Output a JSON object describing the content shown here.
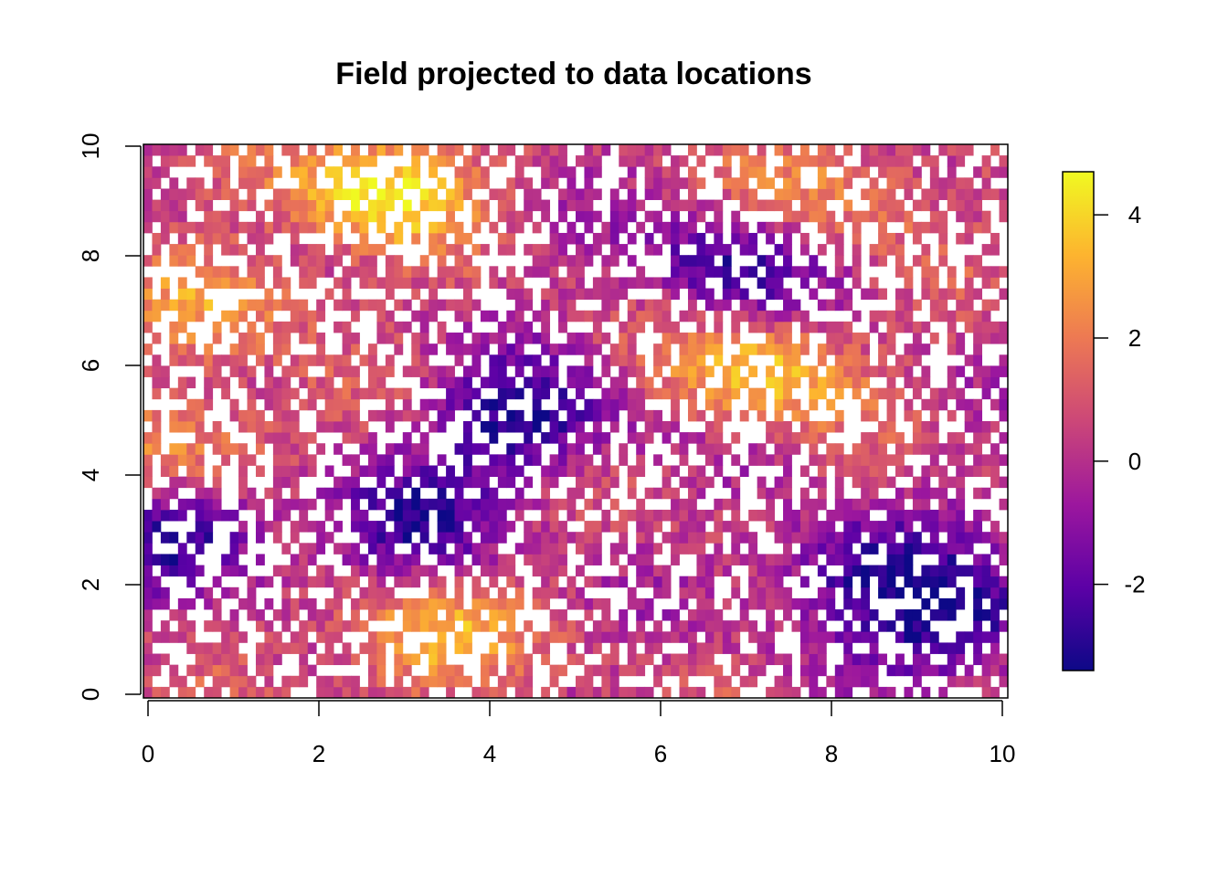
{
  "chart_data": {
    "type": "heatmap",
    "title": "Field projected to data locations",
    "xlabel": "",
    "ylabel": "",
    "xlim": [
      0,
      10
    ],
    "ylim": [
      0,
      10
    ],
    "x_ticks": [
      "0",
      "2",
      "4",
      "6",
      "8",
      "10"
    ],
    "y_ticks": [
      "0",
      "2",
      "4",
      "6",
      "8",
      "10"
    ],
    "grid_cells": [
      100,
      50
    ],
    "missing_fraction": 0.35,
    "value_range": [
      -3.4,
      4.7
    ],
    "colorbar": {
      "range": [
        -3.4,
        4.7
      ],
      "ticks": [
        -2,
        0,
        2,
        4
      ],
      "tick_labels": [
        "-2",
        "0",
        "2",
        "4"
      ],
      "palette": [
        "#0d0887",
        "#5c01a6",
        "#9c179e",
        "#cc4778",
        "#ed7953",
        "#fdb42f",
        "#f0f921"
      ]
    },
    "field_features": [
      {
        "type": "high",
        "x": 2.7,
        "y": 9.2,
        "value": 4.5
      },
      {
        "type": "high",
        "x": 3.2,
        "y": 1.1,
        "value": 3.5
      },
      {
        "type": "high",
        "x": 7.1,
        "y": 5.9,
        "value": 3.8
      },
      {
        "type": "high",
        "x": 0.6,
        "y": 4.6,
        "value": 2.8
      },
      {
        "type": "high",
        "x": 1.0,
        "y": 7.2,
        "value": 2.6
      },
      {
        "type": "high",
        "x": 8.0,
        "y": 9.2,
        "value": 2.5
      },
      {
        "type": "low",
        "x": 4.4,
        "y": 5.0,
        "value": -3.2
      },
      {
        "type": "low",
        "x": 9.4,
        "y": 1.4,
        "value": -3.3
      },
      {
        "type": "low",
        "x": 0.5,
        "y": 3.0,
        "value": -2.5
      },
      {
        "type": "low",
        "x": 6.8,
        "y": 7.8,
        "value": -2.6
      },
      {
        "type": "low",
        "x": 3.0,
        "y": 3.1,
        "value": -2.6
      },
      {
        "type": "low",
        "x": 8.2,
        "y": 2.3,
        "value": -2.5
      }
    ]
  }
}
